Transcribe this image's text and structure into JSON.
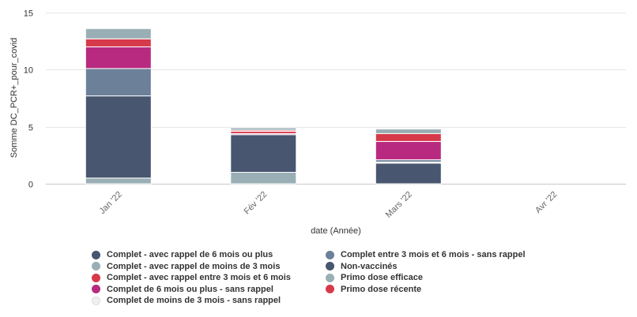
{
  "chart_data": {
    "type": "bar",
    "stacked": true,
    "xlabel": "date (Année)",
    "ylabel": "Somme DC_PCR+_pour_covid",
    "ylim": [
      0,
      15
    ],
    "yticks": [
      0,
      5,
      10,
      15
    ],
    "categories": [
      "Jan '22",
      "Fév '22",
      "Mars '22",
      "Avr '22"
    ],
    "grid": true,
    "legend_position": "bottom",
    "series": [
      {
        "name": "Primo dose efficace",
        "color": "#9aafb5",
        "values": [
          0.5,
          1.0,
          0,
          0
        ]
      },
      {
        "name": "Non-vaccinés",
        "color": "#48566f",
        "values": [
          7.2,
          3.3,
          1.8,
          0
        ]
      },
      {
        "name": "Complet de moins de 3 mois - sans rappel",
        "color": "#f0f0f2",
        "values": [
          0,
          0,
          0.1,
          0
        ]
      },
      {
        "name": "Complet entre 3 mois et 6 mois - sans rappel",
        "color": "#6c8099",
        "values": [
          2.4,
          0,
          0.2,
          0
        ]
      },
      {
        "name": "Complet de 6 mois ou plus - sans rappel",
        "color": "#b82a7f",
        "values": [
          1.9,
          0.1,
          1.6,
          0
        ]
      },
      {
        "name": "Complet - avec rappel entre 3 mois et 6 mois",
        "color": "#d63a4a",
        "values": [
          0.7,
          0.2,
          0.7,
          0
        ]
      },
      {
        "name": "Primo dose récente",
        "color": "#d63a4a",
        "values": [
          0,
          0.1,
          0,
          0
        ]
      },
      {
        "name": "Complet - avec rappel de moins de 3 mois",
        "color": "#9aafb5",
        "values": [
          0.9,
          0.2,
          0.4,
          0
        ]
      },
      {
        "name": "Complet - avec rappel de 6 mois ou plus",
        "color": "#48566f",
        "values": [
          0,
          0,
          0,
          0
        ]
      }
    ]
  },
  "legend": [
    {
      "label": "Complet - avec rappel de 6 mois ou plus",
      "color": "#48566f"
    },
    {
      "label": "Complet - avec rappel de moins de 3 mois",
      "color": "#9aafb5"
    },
    {
      "label": "Complet - avec rappel entre 3 mois et 6 mois",
      "color": "#d63a4a"
    },
    {
      "label": "Complet de 6 mois ou plus - sans rappel",
      "color": "#b82a7f"
    },
    {
      "label": "Complet de moins de 3 mois - sans rappel",
      "color": "#f0f0f2"
    },
    {
      "label": "Complet entre 3 mois et 6 mois - sans rappel",
      "color": "#6c8099"
    },
    {
      "label": "Non-vaccinés",
      "color": "#48566f"
    },
    {
      "label": "Primo dose efficace",
      "color": "#9aafb5"
    },
    {
      "label": "Primo dose récente",
      "color": "#d63a4a"
    }
  ]
}
